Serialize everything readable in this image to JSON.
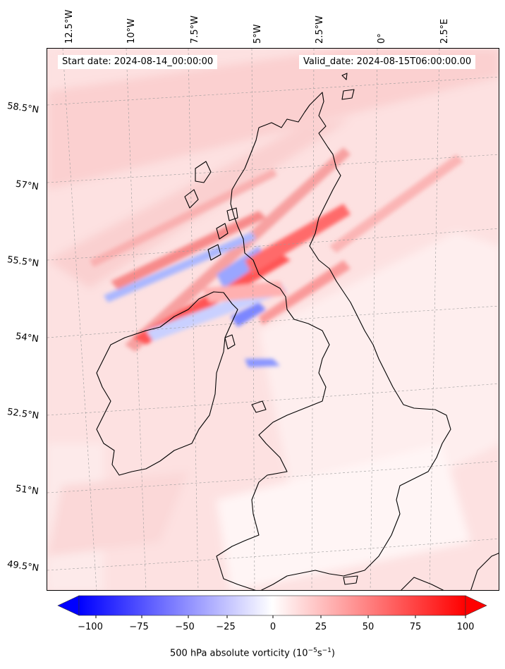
{
  "header": {
    "start_date": "Start date: 2024-08-14_00:00:00",
    "valid_date": "Valid_date: 2024-08-15T06:00:00.00"
  },
  "graticule": {
    "longitude_labels": [
      "12.5°W",
      "10°W",
      "7.5°W",
      "5°W",
      "2.5°W",
      "0°",
      "2.5°E"
    ],
    "latitude_labels": [
      "58.5°N",
      "57°N",
      "55.5°N",
      "54°N",
      "52.5°N",
      "51°N",
      "49.5°N"
    ]
  },
  "colorbar": {
    "min": -100,
    "max": 100,
    "ticks": [
      "−100",
      "−75",
      "−50",
      "−25",
      "0",
      "25",
      "50",
      "75",
      "100"
    ],
    "title_prefix": "500 hPa absolute vorticity (10",
    "title_exp1": "−5",
    "title_mid": "s",
    "title_exp2": "−1",
    "title_suffix": ")",
    "colors": {
      "low": "#0000ff",
      "mid": "#ffffff",
      "high": "#ff0000"
    }
  },
  "map": {
    "background_color": "#fde3e3",
    "coastline_color": "#000000"
  }
}
